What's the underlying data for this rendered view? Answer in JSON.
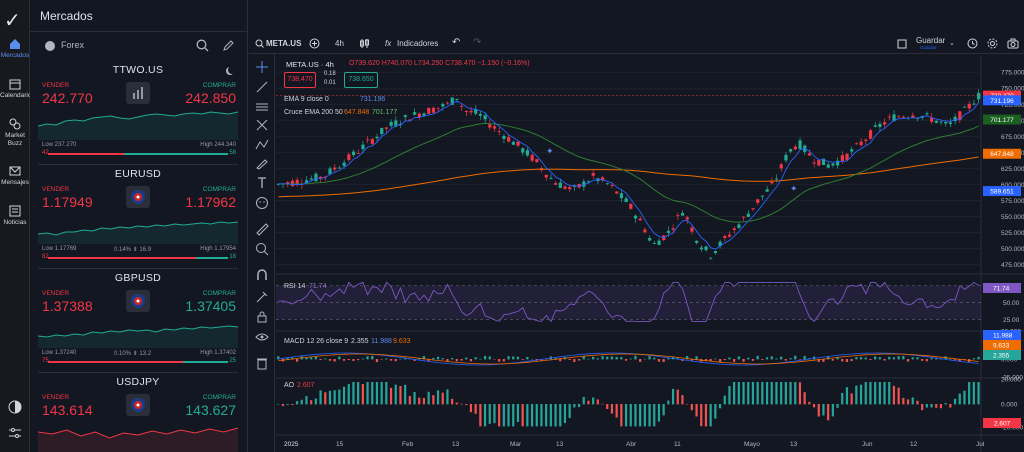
{
  "app": {
    "panel_title": "Mercados",
    "filter": "Forex"
  },
  "rail": {
    "items": [
      {
        "label": "Mercados",
        "icon": "home-icon",
        "active": true
      },
      {
        "label": "Calendario",
        "icon": "calendar-icon"
      },
      {
        "label": "Market Buzz",
        "icon": "buzz-icon"
      },
      {
        "label": "Mensajes",
        "icon": "mail-icon"
      },
      {
        "label": "Noticias",
        "icon": "news-icon"
      }
    ]
  },
  "cards": [
    {
      "symbol": "TTWO.US",
      "sell_label": "VENDER",
      "buy_label": "COMPRAR",
      "sell": "242.770",
      "buy": "242.850",
      "low": "Low 237.270",
      "high": "High 244.340",
      "mid": "",
      "sell_pct": "42",
      "buy_pct": "58",
      "buy_green": false
    },
    {
      "symbol": "EURUSD",
      "sell_label": "VENDER",
      "buy_label": "COMPRAR",
      "sell": "1.17949",
      "buy": "1.17962",
      "low": "Low 1.17769",
      "high": "High 1.17954",
      "mid": "0.14%  ⇟ 16.9",
      "sell_pct": "82",
      "buy_pct": "18",
      "buy_green": false
    },
    {
      "symbol": "GBPUSD",
      "sell_label": "VENDER",
      "buy_label": "COMPRAR",
      "sell": "1.37388",
      "buy": "1.37405",
      "low": "Low 1.37240",
      "high": "High 1.37402",
      "mid": "0.10%  ⇟ 13.2",
      "sell_pct": "75",
      "buy_pct": "25",
      "buy_green": true
    },
    {
      "symbol": "USDJPY",
      "sell_label": "VENDER",
      "buy_label": "COMPRAR",
      "sell": "143.614",
      "buy": "143.627",
      "low": "",
      "high": "",
      "mid": "",
      "sell_pct": "",
      "buy_pct": "",
      "buy_green": true
    }
  ],
  "toolbar": {
    "symbol": "META.US",
    "interval": "4h",
    "fx": "fx",
    "indicators": "Indicadores",
    "save": "Guardar",
    "saved": "Guardar"
  },
  "chart_header": {
    "title": "META.US · 4h",
    "ohlc": "O739.620  H740.070  L734.250  C738.470  −1.150 (−0.16%)",
    "sell_box": "738.470",
    "spread_top": "0.18",
    "spread_bottom": "0.01",
    "buy_box": "738.650",
    "ema_label": "EMA  9 close 0",
    "ema_value": "731.196",
    "cruce_label": "Cruce EMA  200 50",
    "cruce_v1": "647.848",
    "cruce_v2": "701.177"
  },
  "price_axis": [
    "775.000",
    "750.000",
    "725.000",
    "700.000",
    "675.000",
    "650.000",
    "625.000",
    "600.000",
    "575.000",
    "550.000",
    "525.000",
    "500.000",
    "475.000"
  ],
  "price_tags": [
    {
      "value": "738.470",
      "color": "#f23645"
    },
    {
      "value": "731.196",
      "color": "#2962ff"
    },
    {
      "value": "701.177",
      "color": "#1b5e20"
    },
    {
      "value": "647.848",
      "color": "#ef6c00"
    },
    {
      "value": "589.651",
      "color": "#2962ff"
    }
  ],
  "rsi": {
    "label": "RSI  14",
    "value": "71.74",
    "axis": [
      "75.00",
      "50.00",
      "25.00"
    ]
  },
  "macd": {
    "label": "MACD  12 26 close 9",
    "v1": "2.355",
    "v2": "11.988",
    "v3": "9.633",
    "axis": [
      "25.000",
      "0.000",
      "-25.000"
    ],
    "tags": [
      "11.988",
      "9.633",
      "2.355"
    ]
  },
  "ao": {
    "label": "AO",
    "value": "2.607",
    "axis": [
      "20.000",
      "0.000",
      "-20.000"
    ],
    "tag": "2.607"
  },
  "time_axis": [
    "2025",
    "15",
    "Feb",
    "13",
    "Mar",
    "13",
    "Abr",
    "11",
    "Mayo",
    "13",
    "Jun",
    "12",
    "Jul"
  ],
  "colors": {
    "bg": "#131722",
    "up": "#22ab94",
    "down": "#f23645",
    "ema9": "#2962ff",
    "ema50": "#2e7d32",
    "ema200": "#ef6c00",
    "rsi": "#7e57c2"
  }
}
